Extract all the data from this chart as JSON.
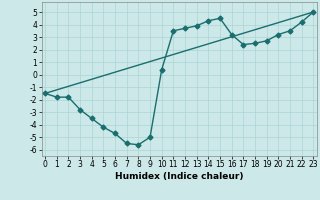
{
  "xlabel": "Humidex (Indice chaleur)",
  "bg_color": "#cce8e8",
  "grid_color": "#aad4d4",
  "line_color": "#1a6e6e",
  "line1_x": [
    0,
    1,
    2,
    3,
    4,
    5,
    6,
    7,
    8,
    9,
    10,
    11,
    12,
    13,
    14,
    15,
    16,
    17,
    18,
    19,
    20,
    21,
    22,
    23
  ],
  "line1_y": [
    -1.5,
    -1.8,
    -1.8,
    -2.8,
    -3.5,
    -4.2,
    -4.7,
    -5.5,
    -5.6,
    -5.0,
    0.4,
    3.5,
    3.7,
    3.9,
    4.3,
    4.5,
    3.2,
    2.4,
    2.5,
    2.7,
    3.2,
    3.5,
    4.2,
    5.0
  ],
  "line2_x": [
    0,
    23
  ],
  "line2_y": [
    -1.5,
    5.0
  ],
  "xlim": [
    -0.3,
    23.3
  ],
  "ylim": [
    -6.5,
    5.8
  ],
  "yticks": [
    -6,
    -5,
    -4,
    -3,
    -2,
    -1,
    0,
    1,
    2,
    3,
    4,
    5
  ],
  "xticks": [
    0,
    1,
    2,
    3,
    4,
    5,
    6,
    7,
    8,
    9,
    10,
    11,
    12,
    13,
    14,
    15,
    16,
    17,
    18,
    19,
    20,
    21,
    22,
    23
  ],
  "xtick_labels": [
    "0",
    "1",
    "2",
    "3",
    "4",
    "5",
    "6",
    "7",
    "8",
    "9",
    "10",
    "11",
    "12",
    "13",
    "14",
    "15",
    "16",
    "17",
    "18",
    "19",
    "20",
    "21",
    "22",
    "23"
  ],
  "marker": "D",
  "markersize": 2.5,
  "linewidth": 1.0,
  "tick_fontsize": 5.5,
  "xlabel_fontsize": 6.5
}
